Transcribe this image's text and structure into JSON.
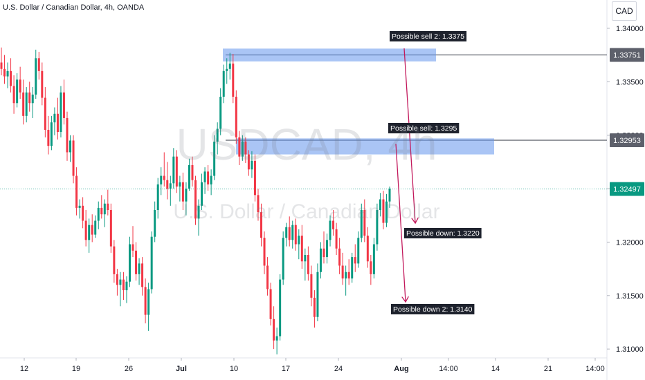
{
  "header": {
    "symbol_description": "U.S. Dollar / Canadian Dollar, 4h, OANDA",
    "currency": "CAD"
  },
  "watermark": {
    "symbol": "USDCAD, 4h",
    "description": "U.S. Dollar / Canadian Dollar"
  },
  "chart_data": {
    "type": "candlestick",
    "y_axis": {
      "range": [
        1.3093,
        1.342
      ],
      "ticks": [
        "1.34000",
        "1.33500",
        "1.33000",
        "1.32500",
        "1.32000",
        "1.31500",
        "1.31000"
      ],
      "tick_values": [
        1.34,
        1.335,
        1.33,
        1.325,
        1.32,
        1.315,
        1.31
      ]
    },
    "x_axis": {
      "labels": [
        "12",
        "19",
        "26",
        "Jul",
        "10",
        "17",
        "24",
        "Aug",
        "14:00",
        "14",
        "21",
        "14:00"
      ],
      "bold_labels": [
        "Jul",
        "Aug"
      ]
    },
    "price_labels": [
      {
        "text": "1.33751",
        "value": 1.33751,
        "style": "line"
      },
      {
        "text": "1.32953",
        "value": 1.32953,
        "style": "line"
      },
      {
        "text": "1.32497",
        "value": 1.32497,
        "style": "current"
      }
    ],
    "zones": [
      {
        "name": "sell-zone-2",
        "from": 1.3369,
        "to": 1.3381
      },
      {
        "name": "sell-zone-1",
        "from": 1.3282,
        "to": 1.3297
      }
    ],
    "annotations": [
      {
        "text": "Possible sell 2: 1.3375"
      },
      {
        "text": "Possible sell: 1.3295"
      },
      {
        "text": "Possible down: 1.3220"
      },
      {
        "text": "Possible down 2: 1.3140"
      }
    ],
    "candles": [
      {
        "o": 1.3368,
        "h": 1.3382,
        "l": 1.3356,
        "c": 1.3362
      },
      {
        "o": 1.3362,
        "h": 1.3375,
        "l": 1.3348,
        "c": 1.3355
      },
      {
        "o": 1.3355,
        "h": 1.3368,
        "l": 1.3344,
        "c": 1.336
      },
      {
        "o": 1.336,
        "h": 1.3372,
        "l": 1.334,
        "c": 1.3346
      },
      {
        "o": 1.3346,
        "h": 1.3356,
        "l": 1.332,
        "c": 1.333
      },
      {
        "o": 1.333,
        "h": 1.3358,
        "l": 1.3326,
        "c": 1.3352
      },
      {
        "o": 1.3352,
        "h": 1.3364,
        "l": 1.3334,
        "c": 1.334
      },
      {
        "o": 1.334,
        "h": 1.3352,
        "l": 1.331,
        "c": 1.3318
      },
      {
        "o": 1.3318,
        "h": 1.3345,
        "l": 1.3312,
        "c": 1.334
      },
      {
        "o": 1.334,
        "h": 1.335,
        "l": 1.3322,
        "c": 1.333
      },
      {
        "o": 1.333,
        "h": 1.3345,
        "l": 1.3316,
        "c": 1.3338
      },
      {
        "o": 1.3338,
        "h": 1.338,
        "l": 1.3334,
        "c": 1.3372
      },
      {
        "o": 1.3372,
        "h": 1.3378,
        "l": 1.3352,
        "c": 1.336
      },
      {
        "o": 1.336,
        "h": 1.3368,
        "l": 1.3328,
        "c": 1.3335
      },
      {
        "o": 1.3335,
        "h": 1.3345,
        "l": 1.3298,
        "c": 1.3305
      },
      {
        "o": 1.3305,
        "h": 1.3318,
        "l": 1.3282,
        "c": 1.329
      },
      {
        "o": 1.329,
        "h": 1.3318,
        "l": 1.3286,
        "c": 1.3312
      },
      {
        "o": 1.3312,
        "h": 1.3326,
        "l": 1.33,
        "c": 1.332
      },
      {
        "o": 1.332,
        "h": 1.3335,
        "l": 1.3296,
        "c": 1.3303
      },
      {
        "o": 1.3303,
        "h": 1.3346,
        "l": 1.3298,
        "c": 1.334
      },
      {
        "o": 1.334,
        "h": 1.3352,
        "l": 1.331,
        "c": 1.3316
      },
      {
        "o": 1.3316,
        "h": 1.3322,
        "l": 1.3276,
        "c": 1.3284
      },
      {
        "o": 1.3284,
        "h": 1.33,
        "l": 1.3275,
        "c": 1.3295
      },
      {
        "o": 1.3295,
        "h": 1.33,
        "l": 1.3255,
        "c": 1.3262
      },
      {
        "o": 1.3262,
        "h": 1.327,
        "l": 1.3225,
        "c": 1.3232
      },
      {
        "o": 1.3232,
        "h": 1.324,
        "l": 1.3222,
        "c": 1.3234
      },
      {
        "o": 1.3234,
        "h": 1.3242,
        "l": 1.3213,
        "c": 1.322
      },
      {
        "o": 1.322,
        "h": 1.323,
        "l": 1.3196,
        "c": 1.3202
      },
      {
        "o": 1.3202,
        "h": 1.3222,
        "l": 1.319,
        "c": 1.3216
      },
      {
        "o": 1.3216,
        "h": 1.3226,
        "l": 1.32,
        "c": 1.3207
      },
      {
        "o": 1.3207,
        "h": 1.3225,
        "l": 1.3204,
        "c": 1.322
      },
      {
        "o": 1.322,
        "h": 1.3238,
        "l": 1.3212,
        "c": 1.3232
      },
      {
        "o": 1.3232,
        "h": 1.3244,
        "l": 1.3222,
        "c": 1.3226
      },
      {
        "o": 1.3226,
        "h": 1.324,
        "l": 1.3214,
        "c": 1.3236
      },
      {
        "o": 1.3236,
        "h": 1.3249,
        "l": 1.3225,
        "c": 1.323
      },
      {
        "o": 1.323,
        "h": 1.3236,
        "l": 1.319,
        "c": 1.3196
      },
      {
        "o": 1.3196,
        "h": 1.3202,
        "l": 1.3162,
        "c": 1.317
      },
      {
        "o": 1.317,
        "h": 1.3175,
        "l": 1.315,
        "c": 1.316
      },
      {
        "o": 1.316,
        "h": 1.3172,
        "l": 1.314,
        "c": 1.3165
      },
      {
        "o": 1.3165,
        "h": 1.3172,
        "l": 1.3146,
        "c": 1.3155
      },
      {
        "o": 1.3155,
        "h": 1.3168,
        "l": 1.3143,
        "c": 1.3163
      },
      {
        "o": 1.3163,
        "h": 1.3205,
        "l": 1.3158,
        "c": 1.3198
      },
      {
        "o": 1.3198,
        "h": 1.3215,
        "l": 1.3186,
        "c": 1.3192
      },
      {
        "o": 1.3192,
        "h": 1.32,
        "l": 1.3164,
        "c": 1.317
      },
      {
        "o": 1.317,
        "h": 1.3185,
        "l": 1.316,
        "c": 1.318
      },
      {
        "o": 1.318,
        "h": 1.3186,
        "l": 1.315,
        "c": 1.3158
      },
      {
        "o": 1.3158,
        "h": 1.3166,
        "l": 1.3124,
        "c": 1.3132
      },
      {
        "o": 1.3132,
        "h": 1.3162,
        "l": 1.3117,
        "c": 1.3156
      },
      {
        "o": 1.3156,
        "h": 1.321,
        "l": 1.3152,
        "c": 1.3205
      },
      {
        "o": 1.3205,
        "h": 1.3238,
        "l": 1.32,
        "c": 1.323
      },
      {
        "o": 1.323,
        "h": 1.326,
        "l": 1.3222,
        "c": 1.3254
      },
      {
        "o": 1.3254,
        "h": 1.327,
        "l": 1.3244,
        "c": 1.3262
      },
      {
        "o": 1.3262,
        "h": 1.3284,
        "l": 1.3252,
        "c": 1.3258
      },
      {
        "o": 1.3258,
        "h": 1.3275,
        "l": 1.324,
        "c": 1.325
      },
      {
        "o": 1.325,
        "h": 1.3262,
        "l": 1.3234,
        "c": 1.3255
      },
      {
        "o": 1.3255,
        "h": 1.3288,
        "l": 1.325,
        "c": 1.328
      },
      {
        "o": 1.328,
        "h": 1.3286,
        "l": 1.3246,
        "c": 1.3252
      },
      {
        "o": 1.3252,
        "h": 1.3262,
        "l": 1.3238,
        "c": 1.3256
      },
      {
        "o": 1.3256,
        "h": 1.3265,
        "l": 1.323,
        "c": 1.3238
      },
      {
        "o": 1.3238,
        "h": 1.3256,
        "l": 1.3225,
        "c": 1.325
      },
      {
        "o": 1.325,
        "h": 1.3278,
        "l": 1.3248,
        "c": 1.3272
      },
      {
        "o": 1.3272,
        "h": 1.328,
        "l": 1.3252,
        "c": 1.3258
      },
      {
        "o": 1.3258,
        "h": 1.3262,
        "l": 1.3216,
        "c": 1.3222
      },
      {
        "o": 1.3222,
        "h": 1.324,
        "l": 1.3206,
        "c": 1.3234
      },
      {
        "o": 1.3234,
        "h": 1.3264,
        "l": 1.323,
        "c": 1.3256
      },
      {
        "o": 1.3256,
        "h": 1.327,
        "l": 1.3245,
        "c": 1.3266
      },
      {
        "o": 1.3266,
        "h": 1.3272,
        "l": 1.3248,
        "c": 1.3254
      },
      {
        "o": 1.3254,
        "h": 1.3268,
        "l": 1.3244,
        "c": 1.3262
      },
      {
        "o": 1.3262,
        "h": 1.33,
        "l": 1.3258,
        "c": 1.3294
      },
      {
        "o": 1.3294,
        "h": 1.3312,
        "l": 1.3282,
        "c": 1.3306
      },
      {
        "o": 1.3306,
        "h": 1.3344,
        "l": 1.33,
        "c": 1.3336
      },
      {
        "o": 1.3336,
        "h": 1.3366,
        "l": 1.333,
        "c": 1.336
      },
      {
        "o": 1.336,
        "h": 1.3372,
        "l": 1.3348,
        "c": 1.3362
      },
      {
        "o": 1.3362,
        "h": 1.3377,
        "l": 1.3352,
        "c": 1.3367
      },
      {
        "o": 1.3367,
        "h": 1.3376,
        "l": 1.333,
        "c": 1.3336
      },
      {
        "o": 1.3336,
        "h": 1.3342,
        "l": 1.3292,
        "c": 1.3298
      },
      {
        "o": 1.3298,
        "h": 1.3304,
        "l": 1.3272,
        "c": 1.328
      },
      {
        "o": 1.328,
        "h": 1.33,
        "l": 1.3276,
        "c": 1.3294
      },
      {
        "o": 1.3294,
        "h": 1.3298,
        "l": 1.3274,
        "c": 1.3282
      },
      {
        "o": 1.3282,
        "h": 1.3286,
        "l": 1.3262,
        "c": 1.3268
      },
      {
        "o": 1.3268,
        "h": 1.3285,
        "l": 1.326,
        "c": 1.3276
      },
      {
        "o": 1.3276,
        "h": 1.3282,
        "l": 1.3238,
        "c": 1.3244
      },
      {
        "o": 1.3244,
        "h": 1.325,
        "l": 1.322,
        "c": 1.3228
      },
      {
        "o": 1.3228,
        "h": 1.3236,
        "l": 1.3196,
        "c": 1.3204
      },
      {
        "o": 1.3204,
        "h": 1.321,
        "l": 1.317,
        "c": 1.3178
      },
      {
        "o": 1.3178,
        "h": 1.3186,
        "l": 1.315,
        "c": 1.3156
      },
      {
        "o": 1.3156,
        "h": 1.3162,
        "l": 1.3122,
        "c": 1.3128
      },
      {
        "o": 1.3128,
        "h": 1.314,
        "l": 1.31,
        "c": 1.3108
      },
      {
        "o": 1.3108,
        "h": 1.312,
        "l": 1.3095,
        "c": 1.3112
      },
      {
        "o": 1.3112,
        "h": 1.317,
        "l": 1.3108,
        "c": 1.3165
      },
      {
        "o": 1.3165,
        "h": 1.321,
        "l": 1.316,
        "c": 1.3204
      },
      {
        "o": 1.3204,
        "h": 1.3218,
        "l": 1.3196,
        "c": 1.3214
      },
      {
        "o": 1.3214,
        "h": 1.3224,
        "l": 1.3196,
        "c": 1.3202
      },
      {
        "o": 1.3202,
        "h": 1.322,
        "l": 1.3194,
        "c": 1.3216
      },
      {
        "o": 1.3216,
        "h": 1.3222,
        "l": 1.3192,
        "c": 1.3198
      },
      {
        "o": 1.3198,
        "h": 1.3212,
        "l": 1.3184,
        "c": 1.3206
      },
      {
        "o": 1.3206,
        "h": 1.3216,
        "l": 1.3175,
        "c": 1.3182
      },
      {
        "o": 1.3182,
        "h": 1.3194,
        "l": 1.3164,
        "c": 1.3188
      },
      {
        "o": 1.3188,
        "h": 1.3196,
        "l": 1.3164,
        "c": 1.317
      },
      {
        "o": 1.317,
        "h": 1.3178,
        "l": 1.314,
        "c": 1.3148
      },
      {
        "o": 1.3148,
        "h": 1.3155,
        "l": 1.312,
        "c": 1.313
      },
      {
        "o": 1.313,
        "h": 1.318,
        "l": 1.3126,
        "c": 1.3172
      },
      {
        "o": 1.3172,
        "h": 1.32,
        "l": 1.3166,
        "c": 1.3194
      },
      {
        "o": 1.3194,
        "h": 1.321,
        "l": 1.318,
        "c": 1.3186
      },
      {
        "o": 1.3186,
        "h": 1.3208,
        "l": 1.318,
        "c": 1.3202
      },
      {
        "o": 1.3202,
        "h": 1.3225,
        "l": 1.3196,
        "c": 1.322
      },
      {
        "o": 1.322,
        "h": 1.323,
        "l": 1.3206,
        "c": 1.3212
      },
      {
        "o": 1.3212,
        "h": 1.3218,
        "l": 1.3188,
        "c": 1.3194
      },
      {
        "o": 1.3194,
        "h": 1.3204,
        "l": 1.317,
        "c": 1.3178
      },
      {
        "o": 1.3178,
        "h": 1.319,
        "l": 1.316,
        "c": 1.3166
      },
      {
        "o": 1.3166,
        "h": 1.3178,
        "l": 1.315,
        "c": 1.3172
      },
      {
        "o": 1.3172,
        "h": 1.3184,
        "l": 1.316,
        "c": 1.3166
      },
      {
        "o": 1.3166,
        "h": 1.319,
        "l": 1.3162,
        "c": 1.3186
      },
      {
        "o": 1.3186,
        "h": 1.3198,
        "l": 1.3172,
        "c": 1.318
      },
      {
        "o": 1.318,
        "h": 1.321,
        "l": 1.3176,
        "c": 1.3204
      },
      {
        "o": 1.3204,
        "h": 1.3236,
        "l": 1.32,
        "c": 1.323
      },
      {
        "o": 1.323,
        "h": 1.324,
        "l": 1.32,
        "c": 1.3206
      },
      {
        "o": 1.3206,
        "h": 1.3214,
        "l": 1.3176,
        "c": 1.3182
      },
      {
        "o": 1.3182,
        "h": 1.3188,
        "l": 1.316,
        "c": 1.317
      },
      {
        "o": 1.317,
        "h": 1.3204,
        "l": 1.3166,
        "c": 1.3198
      },
      {
        "o": 1.3198,
        "h": 1.3236,
        "l": 1.3192,
        "c": 1.323
      },
      {
        "o": 1.323,
        "h": 1.3246,
        "l": 1.3224,
        "c": 1.324
      },
      {
        "o": 1.324,
        "h": 1.3248,
        "l": 1.3212,
        "c": 1.3218
      },
      {
        "o": 1.3218,
        "h": 1.3245,
        "l": 1.3214,
        "c": 1.3238
      },
      {
        "o": 1.3238,
        "h": 1.3252,
        "l": 1.3232,
        "c": 1.325
      }
    ]
  }
}
